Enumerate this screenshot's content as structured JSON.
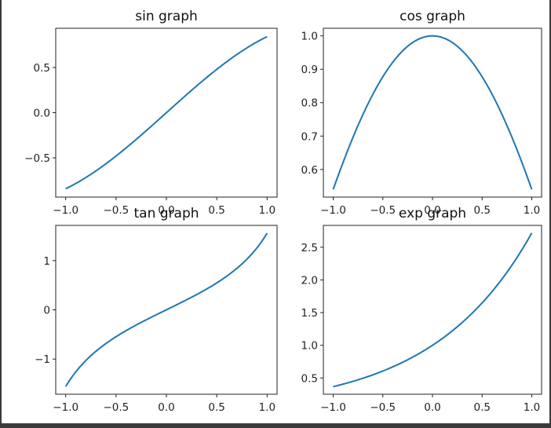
{
  "chart_data": [
    {
      "type": "line",
      "title": "sin graph",
      "xlabel": "",
      "ylabel": "",
      "xlim": [
        -1.0,
        1.0
      ],
      "ylim": [
        -0.85,
        0.85
      ],
      "xticks": [
        -1.0,
        -0.5,
        0.0,
        0.5,
        1.0
      ],
      "xtick_labels": [
        "−1.0",
        "−0.5",
        "0.0",
        "0.5",
        "1.0"
      ],
      "yticks": [
        -0.5,
        0.0,
        0.5
      ],
      "ytick_labels": [
        "−0.5",
        "0.0",
        "0.5"
      ],
      "series": [
        {
          "color": "#1f77b4",
          "x": [
            -1.0,
            -0.75,
            -0.5,
            -0.25,
            0.0,
            0.25,
            0.5,
            0.75,
            1.0
          ],
          "y": [
            -0.841,
            -0.682,
            -0.479,
            -0.247,
            0.0,
            0.247,
            0.479,
            0.682,
            0.841
          ]
        }
      ]
    },
    {
      "type": "line",
      "title": "cos graph",
      "xlabel": "",
      "ylabel": "",
      "xlim": [
        -1.0,
        1.0
      ],
      "ylim": [
        0.54,
        1.0
      ],
      "xticks": [
        -1.0,
        -0.5,
        0.0,
        0.5,
        1.0
      ],
      "xtick_labels": [
        "−1.0",
        "−0.5",
        "0.0",
        "0.5",
        "1.0"
      ],
      "yticks": [
        0.6,
        0.7,
        0.8,
        0.9,
        1.0
      ],
      "ytick_labels": [
        "0.6",
        "0.7",
        "0.8",
        "0.9",
        "1.0"
      ],
      "series": [
        {
          "color": "#1f77b4",
          "x": [
            -1.0,
            -0.75,
            -0.5,
            -0.25,
            0.0,
            0.25,
            0.5,
            0.75,
            1.0
          ],
          "y": [
            0.54,
            0.732,
            0.878,
            0.969,
            1.0,
            0.969,
            0.878,
            0.732,
            0.54
          ]
        }
      ]
    },
    {
      "type": "line",
      "title": "tan graph",
      "xlabel": "",
      "ylabel": "",
      "xlim": [
        -1.0,
        1.0
      ],
      "ylim": [
        -1.56,
        1.56
      ],
      "xticks": [
        -1.0,
        -0.5,
        0.0,
        0.5,
        1.0
      ],
      "xtick_labels": [
        "−1.0",
        "−0.5",
        "0.0",
        "0.5",
        "1.0"
      ],
      "yticks": [
        -1,
        0,
        1
      ],
      "ytick_labels": [
        "−1",
        "0",
        "1"
      ],
      "series": [
        {
          "color": "#1f77b4",
          "x": [
            -1.0,
            -0.75,
            -0.5,
            -0.25,
            0.0,
            0.25,
            0.5,
            0.75,
            1.0
          ],
          "y": [
            -1.557,
            -0.932,
            -0.546,
            -0.255,
            0.0,
            0.255,
            0.546,
            0.932,
            1.557
          ]
        }
      ]
    },
    {
      "type": "line",
      "title": "exp graph",
      "xlabel": "",
      "ylabel": "",
      "xlim": [
        -1.0,
        1.0
      ],
      "ylim": [
        0.368,
        2.718
      ],
      "xticks": [
        -1.0,
        -0.5,
        0.0,
        0.5,
        1.0
      ],
      "xtick_labels": [
        "−1.0",
        "−0.5",
        "0.0",
        "0.5",
        "1.0"
      ],
      "yticks": [
        0.5,
        1.0,
        1.5,
        2.0,
        2.5
      ],
      "ytick_labels": [
        "0.5",
        "1.0",
        "1.5",
        "2.0",
        "2.5"
      ],
      "series": [
        {
          "color": "#1f77b4",
          "x": [
            -1.0,
            -0.75,
            -0.5,
            -0.25,
            0.0,
            0.25,
            0.5,
            0.75,
            1.0
          ],
          "y": [
            0.368,
            0.472,
            0.607,
            0.779,
            1.0,
            1.284,
            1.649,
            2.117,
            2.718
          ]
        }
      ]
    }
  ]
}
